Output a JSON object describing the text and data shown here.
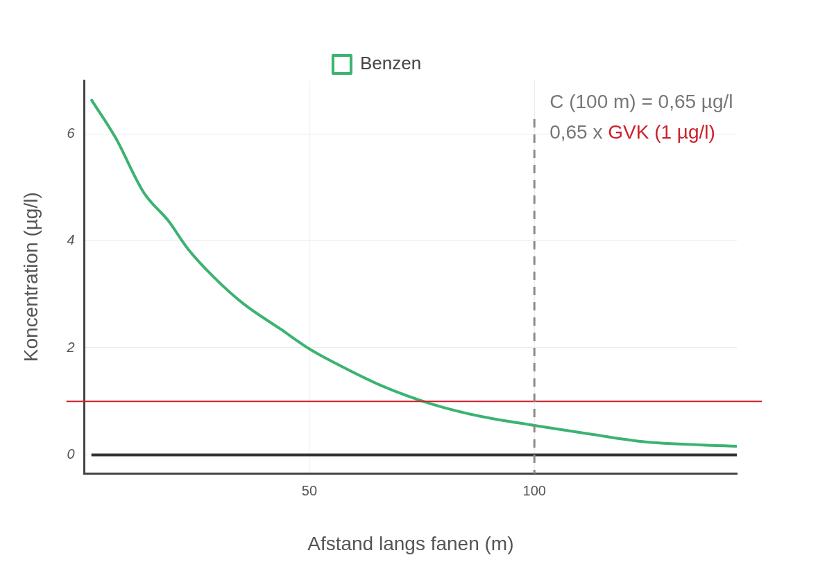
{
  "chart_data": {
    "type": "line",
    "xlabel": "Afstand langs fanen (m)",
    "ylabel": "Koncentration (µg/l)",
    "xlim": [
      0,
      145
    ],
    "xticks": [
      50,
      100
    ],
    "ylim": [
      -0.35,
      7
    ],
    "yticks": [
      0,
      2,
      4,
      6
    ],
    "grid": true,
    "legend": "top",
    "marker": "none",
    "line_style": "solid",
    "series": [
      {
        "name": "Benzen",
        "color": "#3cb371",
        "x": [
          1.6,
          6.9,
          13.2,
          18.7,
          23,
          28.9,
          35.4,
          43.6,
          50,
          57,
          66.4,
          77.2,
          88,
          100,
          113,
          124.8,
          145
        ],
        "values": [
          6.63,
          5.93,
          4.9,
          4.37,
          3.85,
          3.31,
          2.82,
          2.35,
          1.98,
          1.66,
          1.28,
          0.95,
          0.72,
          0.55,
          0.38,
          0.24,
          0.16
        ]
      }
    ],
    "ref_lines": [
      {
        "axis": "y",
        "value": 0,
        "color": "#333333",
        "line_style": "solid"
      },
      {
        "axis": "y",
        "value": 1,
        "label": "GVK (1 µg/l)",
        "color": "#cc1f2a",
        "line_style": "solid"
      },
      {
        "axis": "x",
        "value": 100,
        "color": "#8a8a8a",
        "line_style": "dashed"
      }
    ],
    "annotations": [
      "C (100 m) = 0,65 µg/l",
      "0,65 x"
    ]
  }
}
